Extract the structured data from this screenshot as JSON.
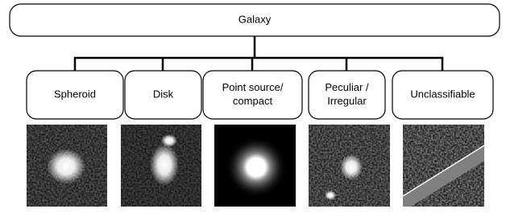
{
  "header": {
    "title": "Galaxy"
  },
  "nodes": [
    {
      "lines": [
        "Spheroid"
      ]
    },
    {
      "lines": [
        "Disk"
      ]
    },
    {
      "lines": [
        "Point source/",
        "compact"
      ]
    },
    {
      "lines": [
        "Peculiar /",
        "Irregular"
      ]
    },
    {
      "lines": [
        "Unclassifiable"
      ]
    }
  ]
}
